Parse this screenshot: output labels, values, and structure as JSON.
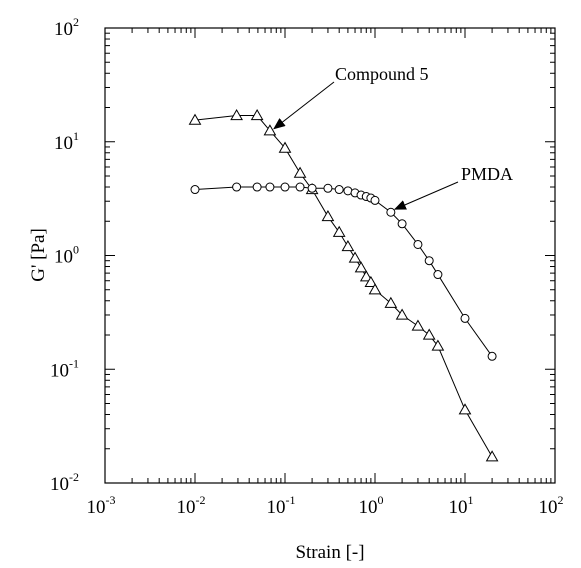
{
  "chart_data": {
    "type": "scatter",
    "xscale": "log",
    "yscale": "log",
    "xlim": [
      0.001,
      100
    ],
    "ylim": [
      0.01,
      100
    ],
    "xlabel": "Strain [-]",
    "ylabel": "G' [Pa]",
    "grid": false,
    "x_ticks": [
      {
        "base": "10",
        "exp": "-3",
        "value": 0.001
      },
      {
        "base": "10",
        "exp": "-2",
        "value": 0.01
      },
      {
        "base": "10",
        "exp": "-1",
        "value": 0.1
      },
      {
        "base": "10",
        "exp": "0",
        "value": 1
      },
      {
        "base": "10",
        "exp": "1",
        "value": 10
      },
      {
        "base": "10",
        "exp": "2",
        "value": 100
      }
    ],
    "y_ticks": [
      {
        "base": "10",
        "exp": "-2",
        "value": 0.01
      },
      {
        "base": "10",
        "exp": "-1",
        "value": 0.1
      },
      {
        "base": "10",
        "exp": "0",
        "value": 1
      },
      {
        "base": "10",
        "exp": "1",
        "value": 10
      },
      {
        "base": "10",
        "exp": "2",
        "value": 100
      }
    ],
    "series": [
      {
        "name": "Compound 5",
        "marker": "triangle",
        "x": [
          0.01,
          0.029,
          0.049,
          0.068,
          0.1,
          0.147,
          0.2,
          0.3,
          0.4,
          0.5,
          0.6,
          0.7,
          0.8,
          0.9,
          1.0,
          1.5,
          2.0,
          3.0,
          4.0,
          5.0,
          10.0,
          20.0
        ],
        "y": [
          15.5,
          17.0,
          17.0,
          12.5,
          8.8,
          5.3,
          3.8,
          2.2,
          1.6,
          1.2,
          0.95,
          0.78,
          0.65,
          0.58,
          0.5,
          0.38,
          0.3,
          0.24,
          0.2,
          0.16,
          0.044,
          0.017
        ]
      },
      {
        "name": "PMDA",
        "marker": "circle",
        "x": [
          0.01,
          0.029,
          0.049,
          0.068,
          0.1,
          0.147,
          0.2,
          0.3,
          0.4,
          0.5,
          0.6,
          0.7,
          0.8,
          0.9,
          1.0,
          1.5,
          2.0,
          3.0,
          4.0,
          5.0,
          10.0,
          20.0
        ],
        "y": [
          3.8,
          4.0,
          4.0,
          4.0,
          4.0,
          4.0,
          3.9,
          3.9,
          3.8,
          3.7,
          3.55,
          3.4,
          3.3,
          3.2,
          3.05,
          2.4,
          1.9,
          1.25,
          0.9,
          0.68,
          0.28,
          0.13
        ]
      }
    ],
    "annotations": [
      {
        "text": "Compound 5",
        "series": "Compound 5",
        "x": 0.068,
        "y": 12.5
      },
      {
        "text": "PMDA",
        "series": "PMDA",
        "x": 1.5,
        "y": 2.4
      }
    ]
  }
}
